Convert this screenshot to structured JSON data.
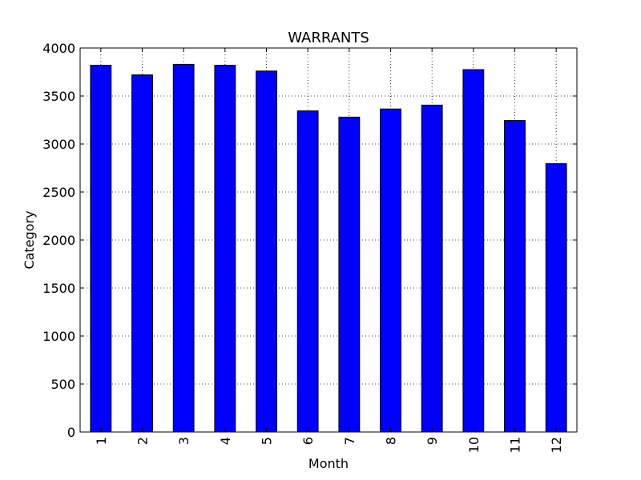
{
  "chart_data": {
    "type": "bar",
    "title": "WARRANTS",
    "xlabel": "Month",
    "ylabel": "Category",
    "categories": [
      "1",
      "2",
      "3",
      "4",
      "5",
      "6",
      "7",
      "8",
      "9",
      "10",
      "11",
      "12"
    ],
    "values": [
      3820,
      3720,
      3830,
      3820,
      3760,
      3345,
      3280,
      3365,
      3405,
      3775,
      3245,
      2795
    ],
    "ylim": [
      0,
      4000
    ],
    "yticks": [
      "0",
      "500",
      "1000",
      "1500",
      "2000",
      "2500",
      "3000",
      "3500",
      "4000"
    ],
    "grid": true,
    "legend": "none",
    "bar_color": "#0000ff",
    "edge_color": "#000000"
  }
}
